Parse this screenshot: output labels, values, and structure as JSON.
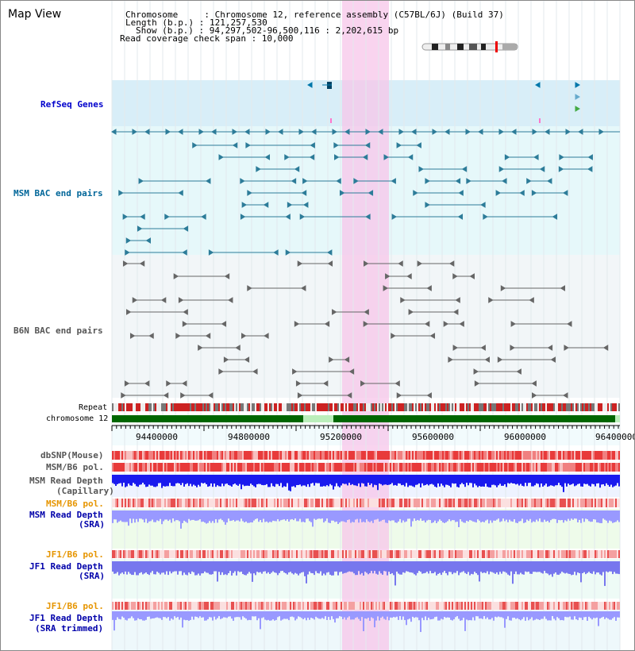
{
  "title": "Map View",
  "info": {
    "chromosome": "Chromosome     : Chromosome 12, reference assembly (C57BL/6J) (Build 37)",
    "length": "Length (b.p.) : 121,257,530",
    "show": "Show (b.p.) : 94,297,502-96,500,116 : 2,202,615 bp",
    "coverage": "Read coverage check span : 10,000"
  },
  "tracks": {
    "refseq": "RefSeq Genes",
    "msm_bac": "MSM BAC end pairs",
    "b6n_bac": "B6N BAC end pairs",
    "repeat": "Repeat",
    "chromosome": "chromosome 12",
    "dbsnp": "dbSNP(Mouse)",
    "msm_b6_pol_1": "MSM/B6 pol.",
    "msm_depth_cap_1": "MSM Read Depth",
    "msm_depth_cap_2": "(Capillary)",
    "msm_b6_pol_2": "MSM/B6 pol.",
    "msm_depth_sra_1": "MSM Read Depth",
    "msm_depth_sra_2": "(SRA)",
    "jf1_b6_pol_1": "JF1/B6 pol.",
    "jf1_depth_sra_1": "JF1 Read Depth",
    "jf1_depth_sra_2": "(SRA)",
    "jf1_b6_pol_2": "JF1/B6 pol.",
    "jf1_depth_trim_1": "JF1 Read Depth",
    "jf1_depth_trim_2": "(SRA trimmed)"
  },
  "axis_ticks": [
    "94400000",
    "94800000",
    "95200000",
    "95600000",
    "96000000",
    "96400000"
  ],
  "colors": {
    "refseq_label": "#0000cc",
    "msm_label": "#006699",
    "b6n_label": "#555555",
    "pol_orange": "#e69500",
    "depth_blue": "#0000aa",
    "highlight": "#f7c6ea",
    "chrom_green": "#006600"
  }
}
